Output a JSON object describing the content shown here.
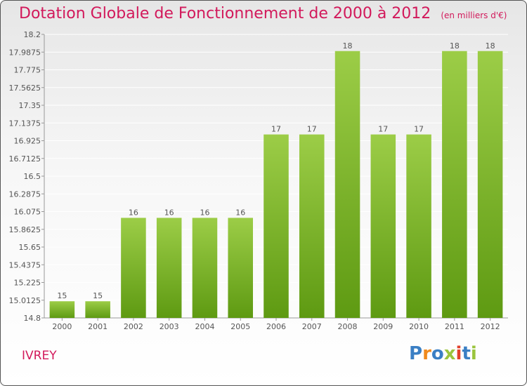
{
  "title": "Dotation Globale de Fonctionnement de 2000 à 2012",
  "subtitle": "(en milliers d'€)",
  "commune": "IVREY",
  "logo": {
    "text": "Proxiti",
    "colors": [
      "#3a7fc4",
      "#f08a1c",
      "#3a7fc4",
      "#9bc53d",
      "#e2412b",
      "#3a7fc4",
      "#9bc53d"
    ]
  },
  "colors": {
    "accent": "#d2195b",
    "bar_light": "#9ccd47",
    "bar_dark": "#5e9a12",
    "grid": "#ffffff",
    "axis_text": "#555555"
  },
  "chart_data": {
    "type": "bar",
    "categories": [
      "2000",
      "2001",
      "2002",
      "2003",
      "2004",
      "2005",
      "2006",
      "2007",
      "2008",
      "2009",
      "2010",
      "2011",
      "2012"
    ],
    "values": [
      15,
      15,
      16,
      16,
      16,
      16,
      17,
      17,
      18,
      17,
      17,
      18,
      18
    ],
    "data_labels": [
      "15",
      "15",
      "16",
      "16",
      "16",
      "16",
      "17",
      "17",
      "18",
      "17",
      "17",
      "18",
      "18"
    ],
    "y_tick_labels": [
      "14.8",
      "15.0125",
      "15.225",
      "15.4375",
      "15.65",
      "15.8625",
      "16.075",
      "16.2875",
      "16.5",
      "16.7125",
      "16.925",
      "17.1375",
      "17.35",
      "17.5625",
      "17.775",
      "17.9875",
      "18.2"
    ],
    "ylim": [
      14.8,
      18.2
    ],
    "title": "Dotation Globale de Fonctionnement de 2000 à 2012",
    "xlabel": "",
    "ylabel": "",
    "grid": true
  }
}
